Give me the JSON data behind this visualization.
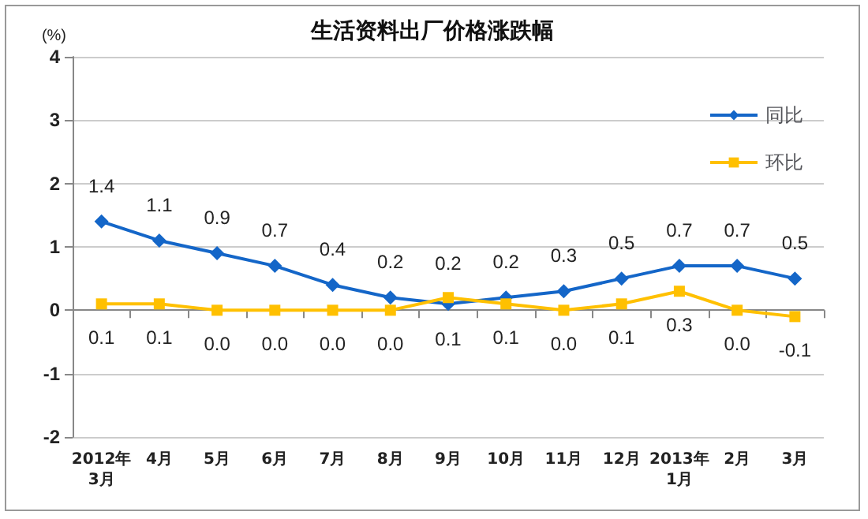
{
  "chart_data": {
    "type": "line",
    "title": "生活资料出厂价格涨跌幅",
    "ylabel": "(%)",
    "categories": [
      "2012年\n3月",
      "4月",
      "5月",
      "6月",
      "7月",
      "8月",
      "9月",
      "10月",
      "11月",
      "12月",
      "2013年\n1月",
      "2月",
      "3月"
    ],
    "series": [
      {
        "name": "同比",
        "color": "#1466c8",
        "marker": "diamond",
        "values": [
          1.4,
          1.1,
          0.9,
          0.7,
          0.4,
          0.2,
          0.1,
          0.2,
          0.3,
          0.5,
          0.7,
          0.7,
          0.5
        ],
        "value_labels": [
          "1.4",
          "1.1",
          "0.9",
          "0.7",
          "0.4",
          "0.2",
          "0.1",
          "0.2",
          "0.3",
          "0.5",
          "0.7",
          "0.7",
          "0.5"
        ]
      },
      {
        "name": "环比",
        "color": "#ffc000",
        "marker": "square",
        "values": [
          0.1,
          0.1,
          0.0,
          0.0,
          0.0,
          0.0,
          0.2,
          0.1,
          0.0,
          0.1,
          0.3,
          0.0,
          -0.1
        ],
        "value_labels": [
          "0.1",
          "0.1",
          "0.0",
          "0.0",
          "0.0",
          "0.0",
          "0.2",
          "0.1",
          "0.0",
          "0.1",
          "0.3",
          "0.0",
          "-0.1"
        ]
      }
    ],
    "ylim": [
      -2,
      4
    ],
    "yticks": [
      -2,
      -1,
      0,
      1,
      2,
      3,
      4
    ],
    "grid": "y",
    "legend": "top right"
  }
}
